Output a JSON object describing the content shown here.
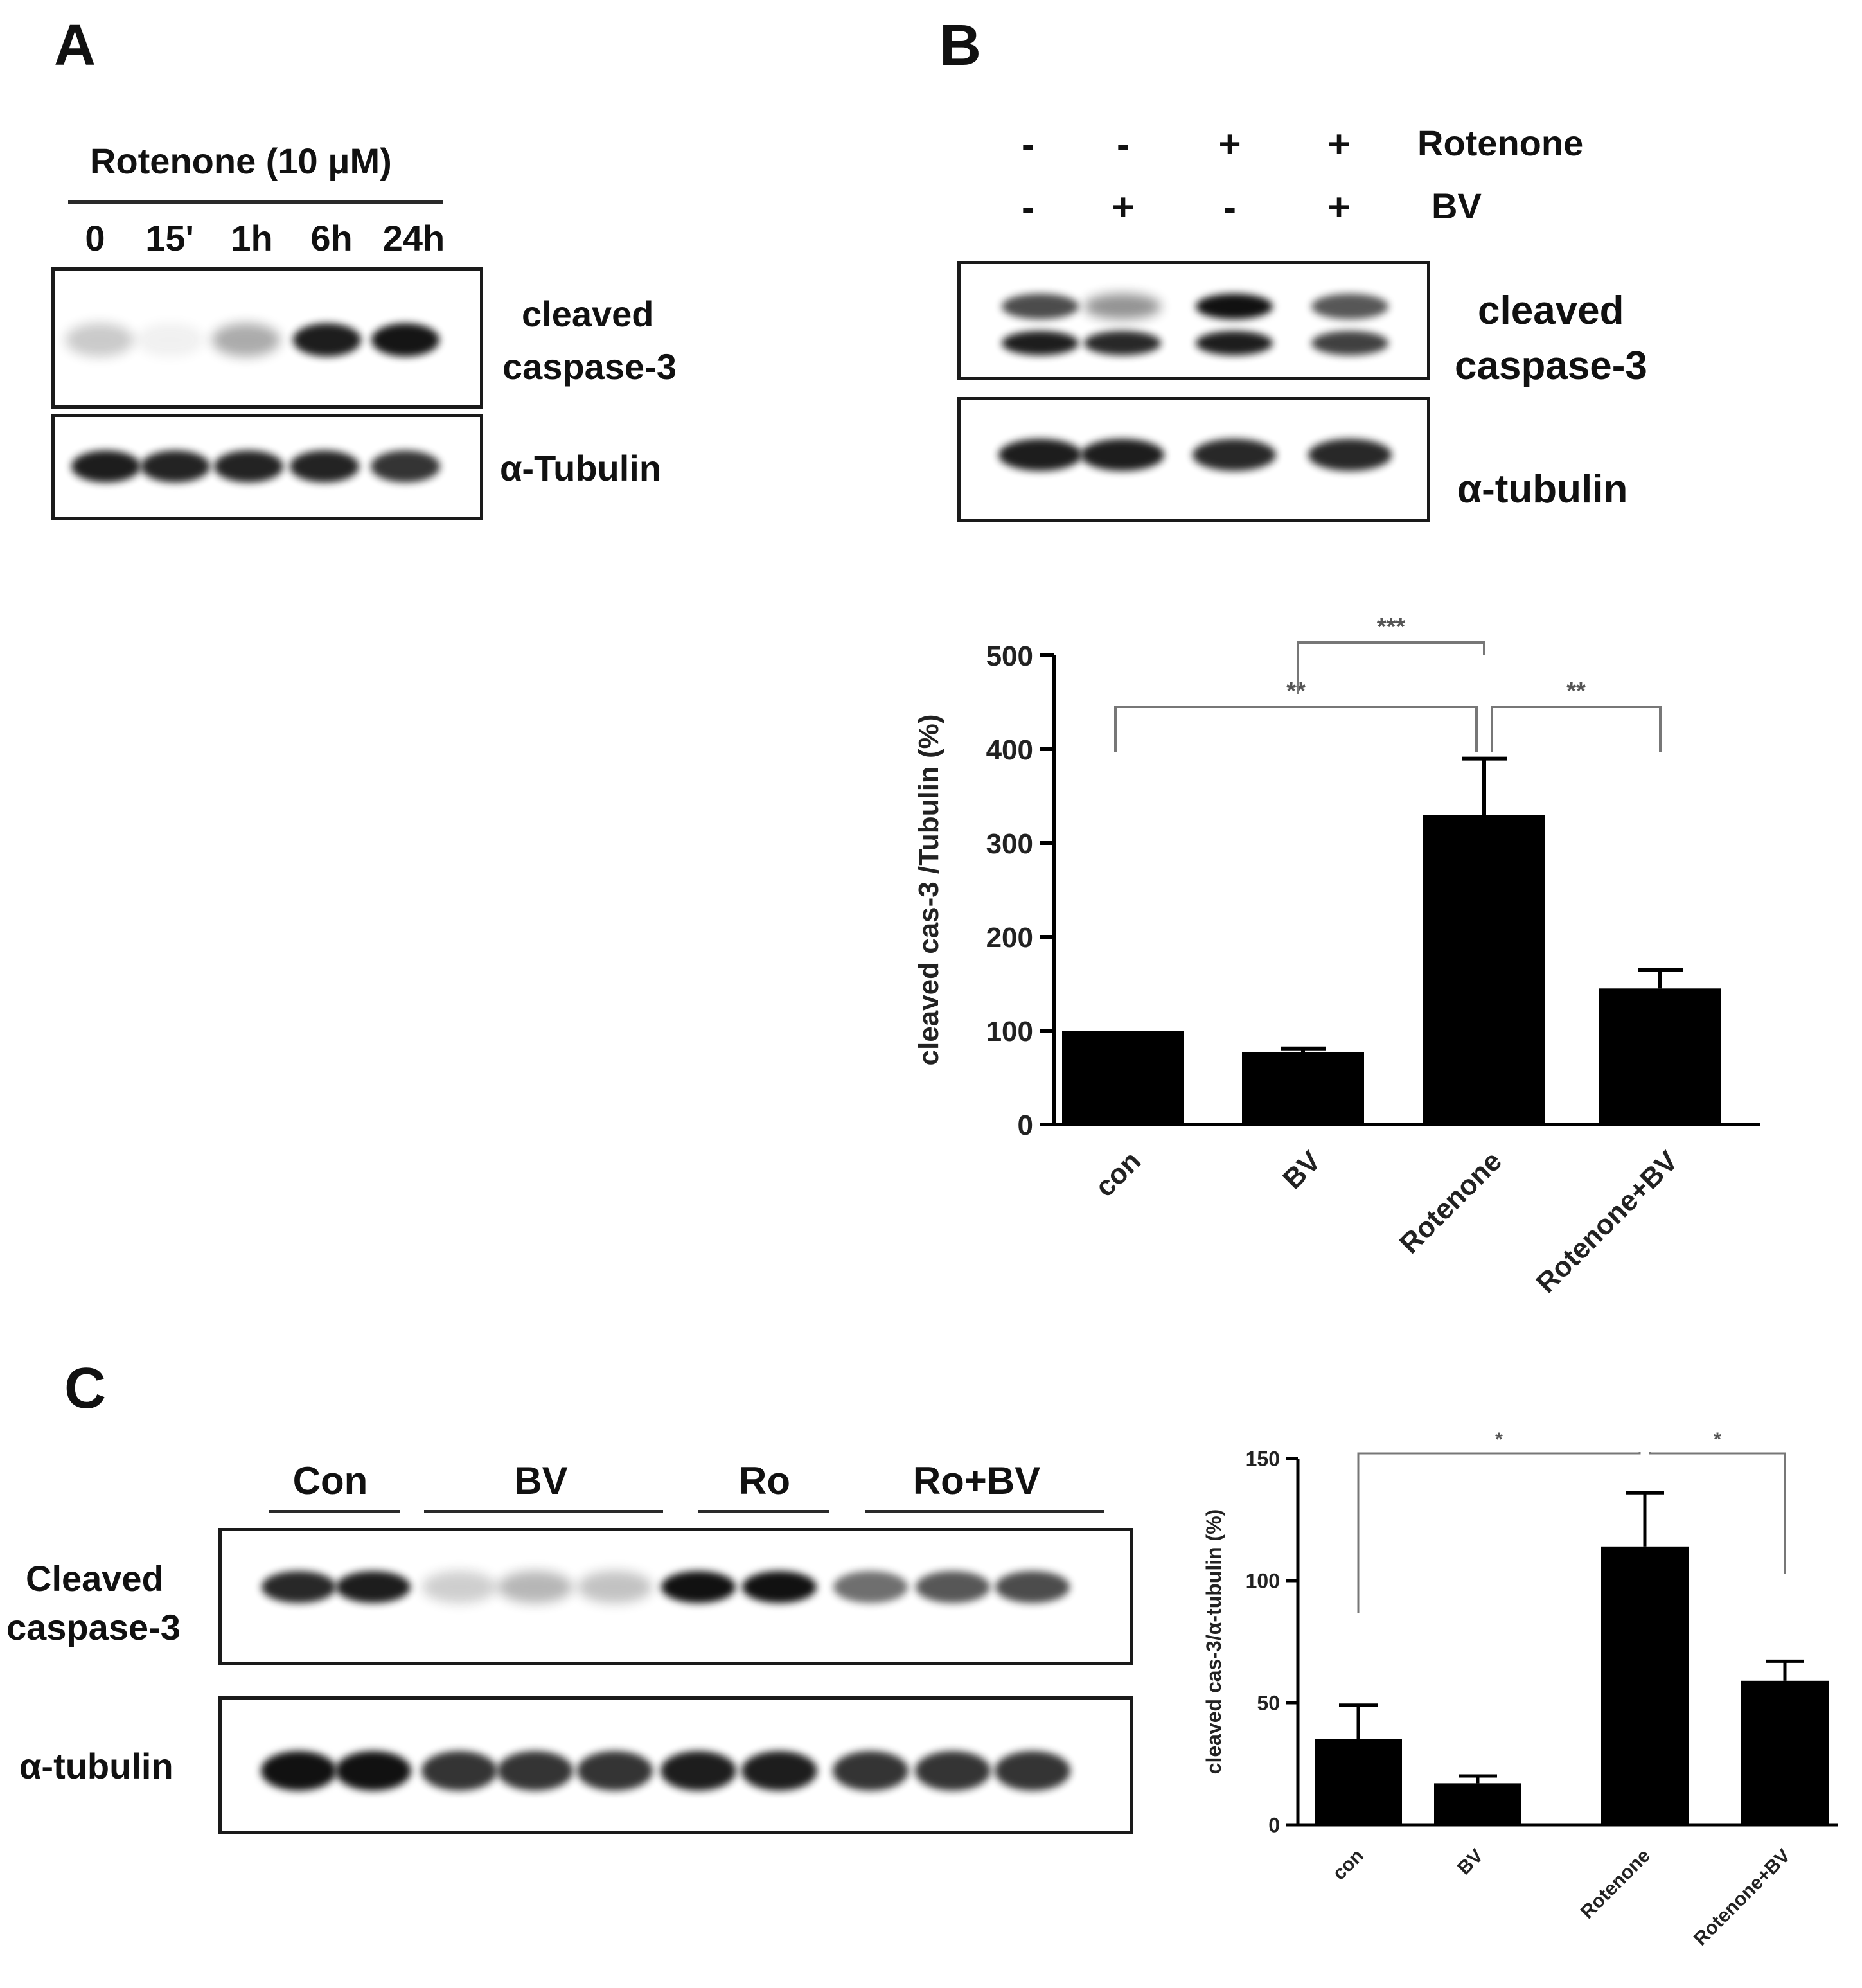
{
  "panel_a": {
    "letter": "A",
    "treatment_label": "Rotenone (10 μM)",
    "time_points": [
      "0",
      "15'",
      "1h",
      "6h",
      "24h"
    ],
    "band_labels": {
      "top_line1": "cleaved",
      "top_line2": "caspase-3",
      "bottom": "α-Tubulin"
    },
    "top_band_intensity": [
      0.22,
      0.06,
      0.35,
      0.95,
      0.98
    ],
    "bottom_band_intensity": [
      0.95,
      0.92,
      0.92,
      0.92,
      0.85
    ]
  },
  "panel_b": {
    "letter": "B",
    "rows": [
      {
        "label": "Rotenone",
        "signs": [
          "-",
          "-",
          "+",
          "+"
        ]
      },
      {
        "label": "BV",
        "signs": [
          "-",
          "+",
          "-",
          "+"
        ]
      }
    ],
    "band_labels": {
      "top_line1": "cleaved",
      "top_line2": "caspase-3",
      "bottom": "α-tubulin"
    },
    "top_upper_band_intensity": [
      0.75,
      0.45,
      1.0,
      0.7
    ],
    "top_lower_band_intensity": [
      0.95,
      0.9,
      0.95,
      0.8
    ],
    "bottom_band_intensity": [
      0.95,
      0.95,
      0.9,
      0.9
    ]
  },
  "panel_c": {
    "letter": "C",
    "groups": [
      "Con",
      "BV",
      "Ro",
      "Ro+BV"
    ],
    "band_labels": {
      "top_line1": "Cleaved",
      "top_line2": "caspase-3",
      "bottom": "α-tubulin"
    },
    "top_band_intensity": [
      0.9,
      0.95,
      0.2,
      0.3,
      0.25,
      1.0,
      1.0,
      0.6,
      0.7,
      0.75
    ],
    "bottom_band_intensity": [
      1.0,
      1.0,
      0.85,
      0.85,
      0.85,
      0.95,
      0.95,
      0.85,
      0.85,
      0.85
    ]
  },
  "chart_data": [
    {
      "type": "bar",
      "categories": [
        "con",
        "BV",
        "Rotenone",
        "Rotenone+BV"
      ],
      "values": [
        100,
        77,
        330,
        145
      ],
      "error": [
        0,
        4,
        60,
        20
      ],
      "ylabel": "cleaved cas-3 /Tubulin (%)",
      "ylim": [
        0,
        500
      ],
      "yticks": [
        0,
        100,
        200,
        300,
        400,
        500
      ],
      "significance": [
        {
          "from": 0,
          "to": 2,
          "label": "**"
        },
        {
          "from": 1,
          "to": 2,
          "label": "***"
        },
        {
          "from": 2,
          "to": 3,
          "label": "**"
        }
      ],
      "bar_color": "#000000",
      "grid": false
    },
    {
      "type": "bar",
      "categories": [
        "con",
        "BV",
        "Rotenone",
        "Rotenone+BV"
      ],
      "values": [
        35,
        17,
        114,
        59
      ],
      "error": [
        14,
        3,
        22,
        8
      ],
      "ylabel": "cleaved cas-3/α-tubulin (%)",
      "ylim": [
        0,
        150
      ],
      "yticks": [
        0,
        50,
        100,
        150
      ],
      "significance": [
        {
          "from": 0,
          "to": 2,
          "label": "*"
        },
        {
          "from": 2,
          "to": 3,
          "label": "*"
        }
      ],
      "bar_color": "#000000",
      "grid": false
    }
  ]
}
